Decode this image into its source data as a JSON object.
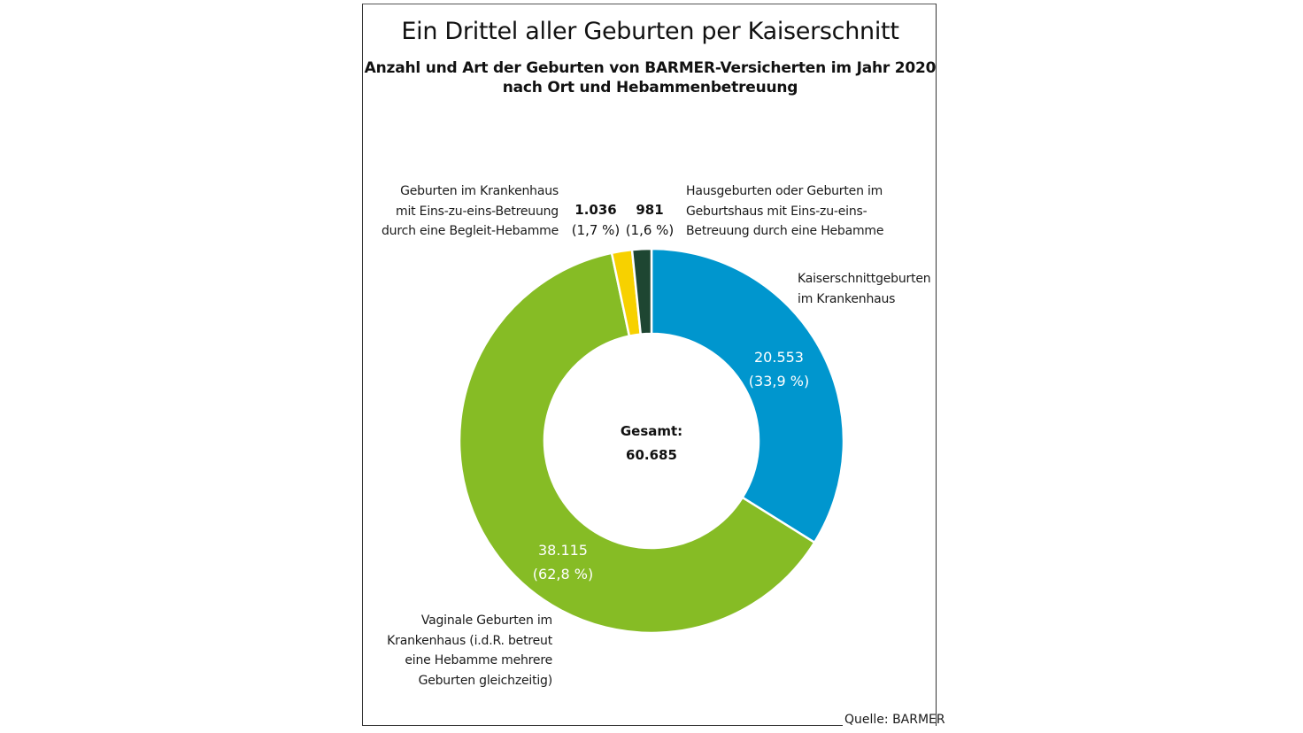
{
  "chart_data": {
    "type": "pie",
    "variant": "donut",
    "title": "Ein Drittel aller Geburten per Kaiserschnitt",
    "subtitle_lines": [
      "Anzahl und Art der Geburten von BARMER-Versicherten im Jahr 2020",
      "nach Ort und Hebammenbetreuung"
    ],
    "start_angle_deg": 0,
    "direction": "clockwise",
    "total": 60685,
    "center_label": {
      "line1": "Gesamt:",
      "line2": "60.685"
    },
    "slices": [
      {
        "name": "Kaiserschnittgeburten im Krankenhaus",
        "label_lines": [
          "Kaiserschnittgeburten",
          "im Krankenhaus"
        ],
        "value": 20553,
        "percent": 33.9,
        "value_text": "20.553",
        "percent_text": "(33,9 %)",
        "color": "#0096CE"
      },
      {
        "name": "Vaginale Geburten im Krankenhaus (i.d.R. betreut eine Hebamme mehrere Geburten gleichzeitig)",
        "label_lines": [
          "Vaginale Geburten im",
          "Krankenhaus (i.d.R. betreut",
          "eine Hebamme mehrere",
          "Geburten gleichzeitig)"
        ],
        "value": 38115,
        "percent": 62.8,
        "value_text": "38.115",
        "percent_text": "(62,8 %)",
        "color": "#86BC25"
      },
      {
        "name": "Geburten im Krankenhaus mit Eins-zu-eins-Betreuung durch eine Begleit-Hebamme",
        "label_lines": [
          "Geburten im Krankenhaus",
          "mit Eins-zu-eins-Betreuung",
          "durch eine Begleit-Hebamme"
        ],
        "value": 1036,
        "percent": 1.7,
        "value_text": "1.036",
        "percent_text": "(1,7 %)",
        "color": "#F7D100"
      },
      {
        "name": "Hausgeburten oder Geburten im Geburtshaus mit Eins-zu-eins-Betreuung durch eine Hebamme",
        "label_lines": [
          "Hausgeburten oder Geburten im",
          "Geburtshaus mit Eins-zu-eins-",
          "Betreuung durch eine Hebamme"
        ],
        "value": 981,
        "percent": 1.6,
        "value_text": "981",
        "percent_text": "(1,6 %)",
        "color": "#1E4632"
      }
    ],
    "source": "Quelle: BARMER"
  }
}
